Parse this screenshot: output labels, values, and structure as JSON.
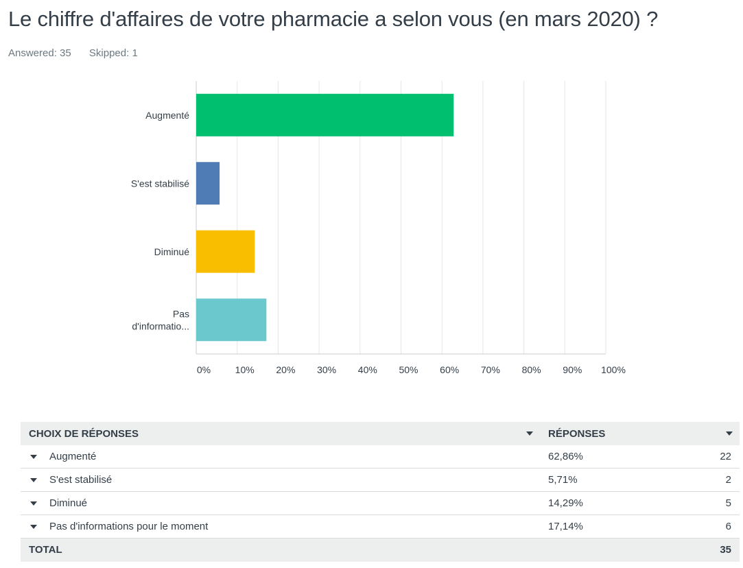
{
  "title": "Le chiffre d'affaires de votre pharmacie a selon vous (en mars 2020) ?",
  "answered": "Answered: 35",
  "skipped": "Skipped: 1",
  "chart_data": {
    "type": "bar",
    "orientation": "horizontal",
    "categories": [
      "Augmenté",
      "S'est stabilisé",
      "Diminué",
      "Pas d'informatio..."
    ],
    "category_lines": [
      [
        "Augmenté"
      ],
      [
        "S'est stabilisé"
      ],
      [
        "Diminué"
      ],
      [
        "Pas",
        "d'informatio..."
      ]
    ],
    "values": [
      62.86,
      5.71,
      14.29,
      17.14
    ],
    "colors": [
      "#00bf6f",
      "#507cb6",
      "#f9be00",
      "#6bc8cd"
    ],
    "xlim": [
      0,
      100
    ],
    "xticks": [
      "0%",
      "10%",
      "20%",
      "30%",
      "40%",
      "50%",
      "60%",
      "70%",
      "80%",
      "90%",
      "100%"
    ],
    "grid": true,
    "title": "",
    "xlabel": "",
    "ylabel": ""
  },
  "table": {
    "header": {
      "choice": "CHOIX DE RÉPONSES",
      "responses": "RÉPONSES"
    },
    "rows": [
      {
        "label": "Augmenté",
        "percent": "62,86%",
        "count": "22"
      },
      {
        "label": "S'est stabilisé",
        "percent": "5,71%",
        "count": "2"
      },
      {
        "label": "Diminué",
        "percent": "14,29%",
        "count": "5"
      },
      {
        "label": "Pas d'informations pour le moment",
        "percent": "17,14%",
        "count": "6"
      }
    ],
    "total": {
      "label": "TOTAL",
      "count": "35"
    }
  }
}
